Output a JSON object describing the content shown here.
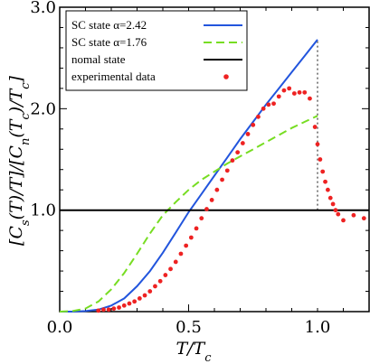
{
  "chart_data": {
    "type": "line",
    "xlabel": "T/T_c",
    "ylabel": "[C_s(T)/T]/[C_n(T_c)/T_c]",
    "xlim": [
      0.0,
      1.2
    ],
    "ylim": [
      0.0,
      3.0
    ],
    "x_ticks": [
      "0.0",
      "0.5",
      "1.0"
    ],
    "y_ticks": [
      "1.0",
      "2.0",
      "3.0"
    ],
    "y_tick_values": [
      1.0,
      2.0,
      3.0
    ],
    "x_tick_values": [
      0.0,
      0.5,
      1.0
    ],
    "grid": false,
    "legend_position": "top-left",
    "series": [
      {
        "name": "SC state α=2.42",
        "color": "#2255dd",
        "style": "solid",
        "x": [
          0.0,
          0.05,
          0.1,
          0.15,
          0.2,
          0.25,
          0.3,
          0.35,
          0.4,
          0.45,
          0.5,
          0.55,
          0.6,
          0.65,
          0.7,
          0.75,
          0.8,
          0.85,
          0.9,
          0.95,
          1.0
        ],
        "y": [
          0.0,
          0.0,
          0.005,
          0.02,
          0.06,
          0.13,
          0.25,
          0.4,
          0.58,
          0.78,
          0.98,
          1.16,
          1.34,
          1.52,
          1.7,
          1.87,
          2.04,
          2.2,
          2.36,
          2.52,
          2.68
        ]
      },
      {
        "name": "SC state α=1.76",
        "color": "#77dd22",
        "style": "dashed",
        "x": [
          0.0,
          0.05,
          0.1,
          0.15,
          0.2,
          0.25,
          0.3,
          0.35,
          0.4,
          0.45,
          0.5,
          0.55,
          0.6,
          0.65,
          0.7,
          0.75,
          0.8,
          0.85,
          0.9,
          0.95,
          1.0
        ],
        "y": [
          0.0,
          0.005,
          0.03,
          0.1,
          0.22,
          0.38,
          0.57,
          0.77,
          0.95,
          1.08,
          1.2,
          1.3,
          1.38,
          1.46,
          1.53,
          1.6,
          1.67,
          1.74,
          1.81,
          1.87,
          1.93
        ]
      },
      {
        "name": "nomal state",
        "color": "#000000",
        "style": "solid",
        "x": [
          0.0,
          1.2
        ],
        "y": [
          1.0,
          1.0
        ]
      },
      {
        "name": "experimental data",
        "color": "#ee2222",
        "style": "markers",
        "x": [
          0.15,
          0.17,
          0.19,
          0.21,
          0.23,
          0.25,
          0.27,
          0.29,
          0.31,
          0.33,
          0.35,
          0.37,
          0.39,
          0.41,
          0.43,
          0.45,
          0.47,
          0.49,
          0.51,
          0.53,
          0.55,
          0.57,
          0.59,
          0.61,
          0.63,
          0.65,
          0.67,
          0.69,
          0.71,
          0.73,
          0.75,
          0.77,
          0.79,
          0.81,
          0.83,
          0.85,
          0.87,
          0.89,
          0.91,
          0.93,
          0.95,
          0.97,
          0.99,
          1.0,
          1.01,
          1.02,
          1.03,
          1.04,
          1.05,
          1.06,
          1.07,
          1.08,
          1.1,
          1.14,
          1.18
        ],
        "y": [
          0.01,
          0.02,
          0.02,
          0.03,
          0.04,
          0.06,
          0.08,
          0.1,
          0.13,
          0.16,
          0.2,
          0.25,
          0.3,
          0.36,
          0.42,
          0.49,
          0.57,
          0.65,
          0.73,
          0.82,
          0.92,
          1.01,
          1.1,
          1.2,
          1.3,
          1.39,
          1.49,
          1.57,
          1.66,
          1.75,
          1.84,
          1.92,
          2.0,
          2.04,
          2.05,
          2.12,
          2.18,
          2.2,
          2.15,
          2.16,
          2.16,
          2.1,
          1.82,
          1.65,
          1.5,
          1.38,
          1.28,
          1.2,
          1.12,
          1.06,
          1.0,
          0.96,
          0.9,
          0.95,
          0.92
        ]
      }
    ],
    "annotations": [
      {
        "type": "vertical-dotted-line",
        "x": 1.0,
        "y_from": 1.0,
        "y_to": 2.68,
        "color": "#888888"
      }
    ]
  }
}
